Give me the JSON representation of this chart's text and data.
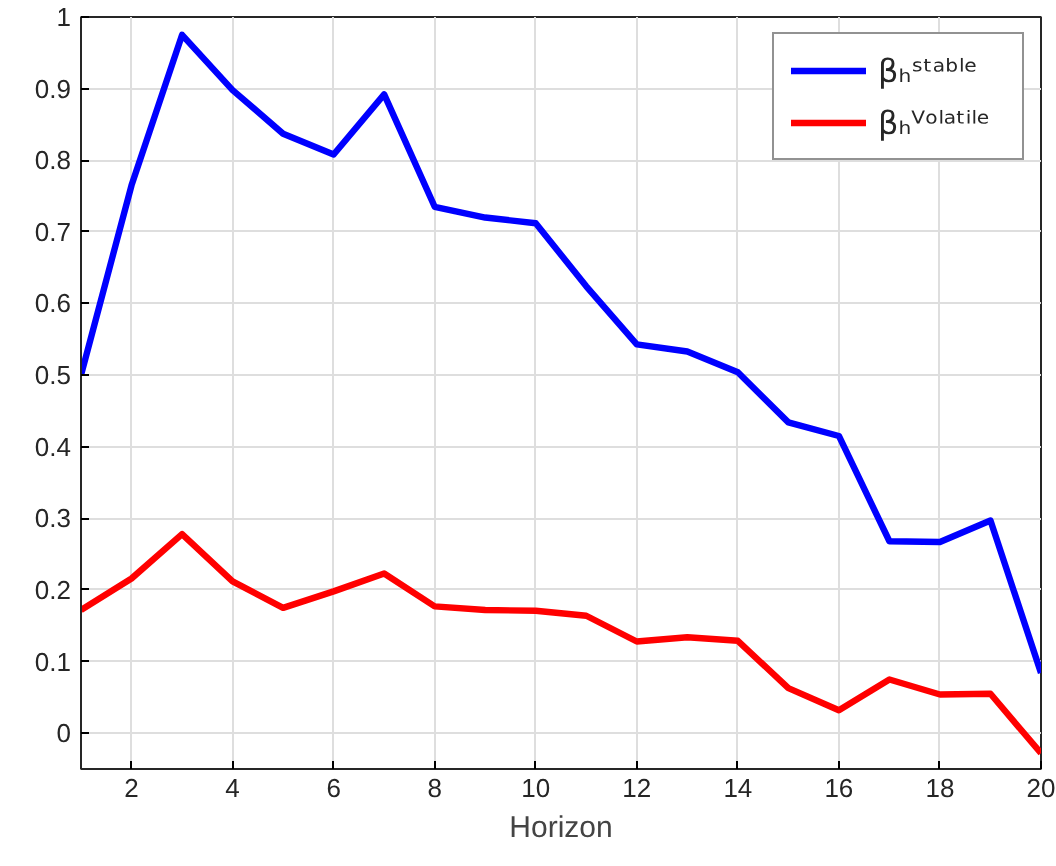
{
  "chart_data": {
    "type": "line",
    "xlabel": "Horizon",
    "x": [
      1,
      2,
      3,
      4,
      5,
      6,
      7,
      8,
      9,
      10,
      11,
      12,
      13,
      14,
      15,
      16,
      17,
      18,
      19,
      20
    ],
    "series": [
      {
        "name": "βₕˢᵗᵃᵇˡᵉ",
        "color": "#0000ff",
        "values": [
          0.5,
          0.765,
          0.975,
          0.898,
          0.837,
          0.808,
          0.892,
          0.735,
          0.72,
          0.712,
          0.624,
          0.543,
          0.533,
          0.504,
          0.434,
          0.415,
          0.268,
          0.267,
          0.297,
          0.084
        ]
      },
      {
        "name": "βₕⱽᵒˡᵃᵗⁱˡᵉ",
        "color": "#ff0000",
        "values": [
          0.172,
          0.216,
          0.278,
          0.212,
          0.175,
          0.198,
          0.223,
          0.177,
          0.172,
          0.171,
          0.164,
          0.128,
          0.134,
          0.129,
          0.063,
          0.032,
          0.075,
          0.054,
          0.055,
          -0.028
        ]
      }
    ],
    "xlim": [
      1,
      20
    ],
    "ylim": [
      -0.05,
      1
    ],
    "xticks": [
      2,
      4,
      6,
      8,
      10,
      12,
      14,
      16,
      18,
      20
    ],
    "yticks": [
      0,
      0.1,
      0.2,
      0.3,
      0.4,
      0.5,
      0.6,
      0.7,
      0.8,
      0.9,
      1
    ],
    "grid": true,
    "legend": "top right",
    "line_style": "solid",
    "marker": "none"
  }
}
